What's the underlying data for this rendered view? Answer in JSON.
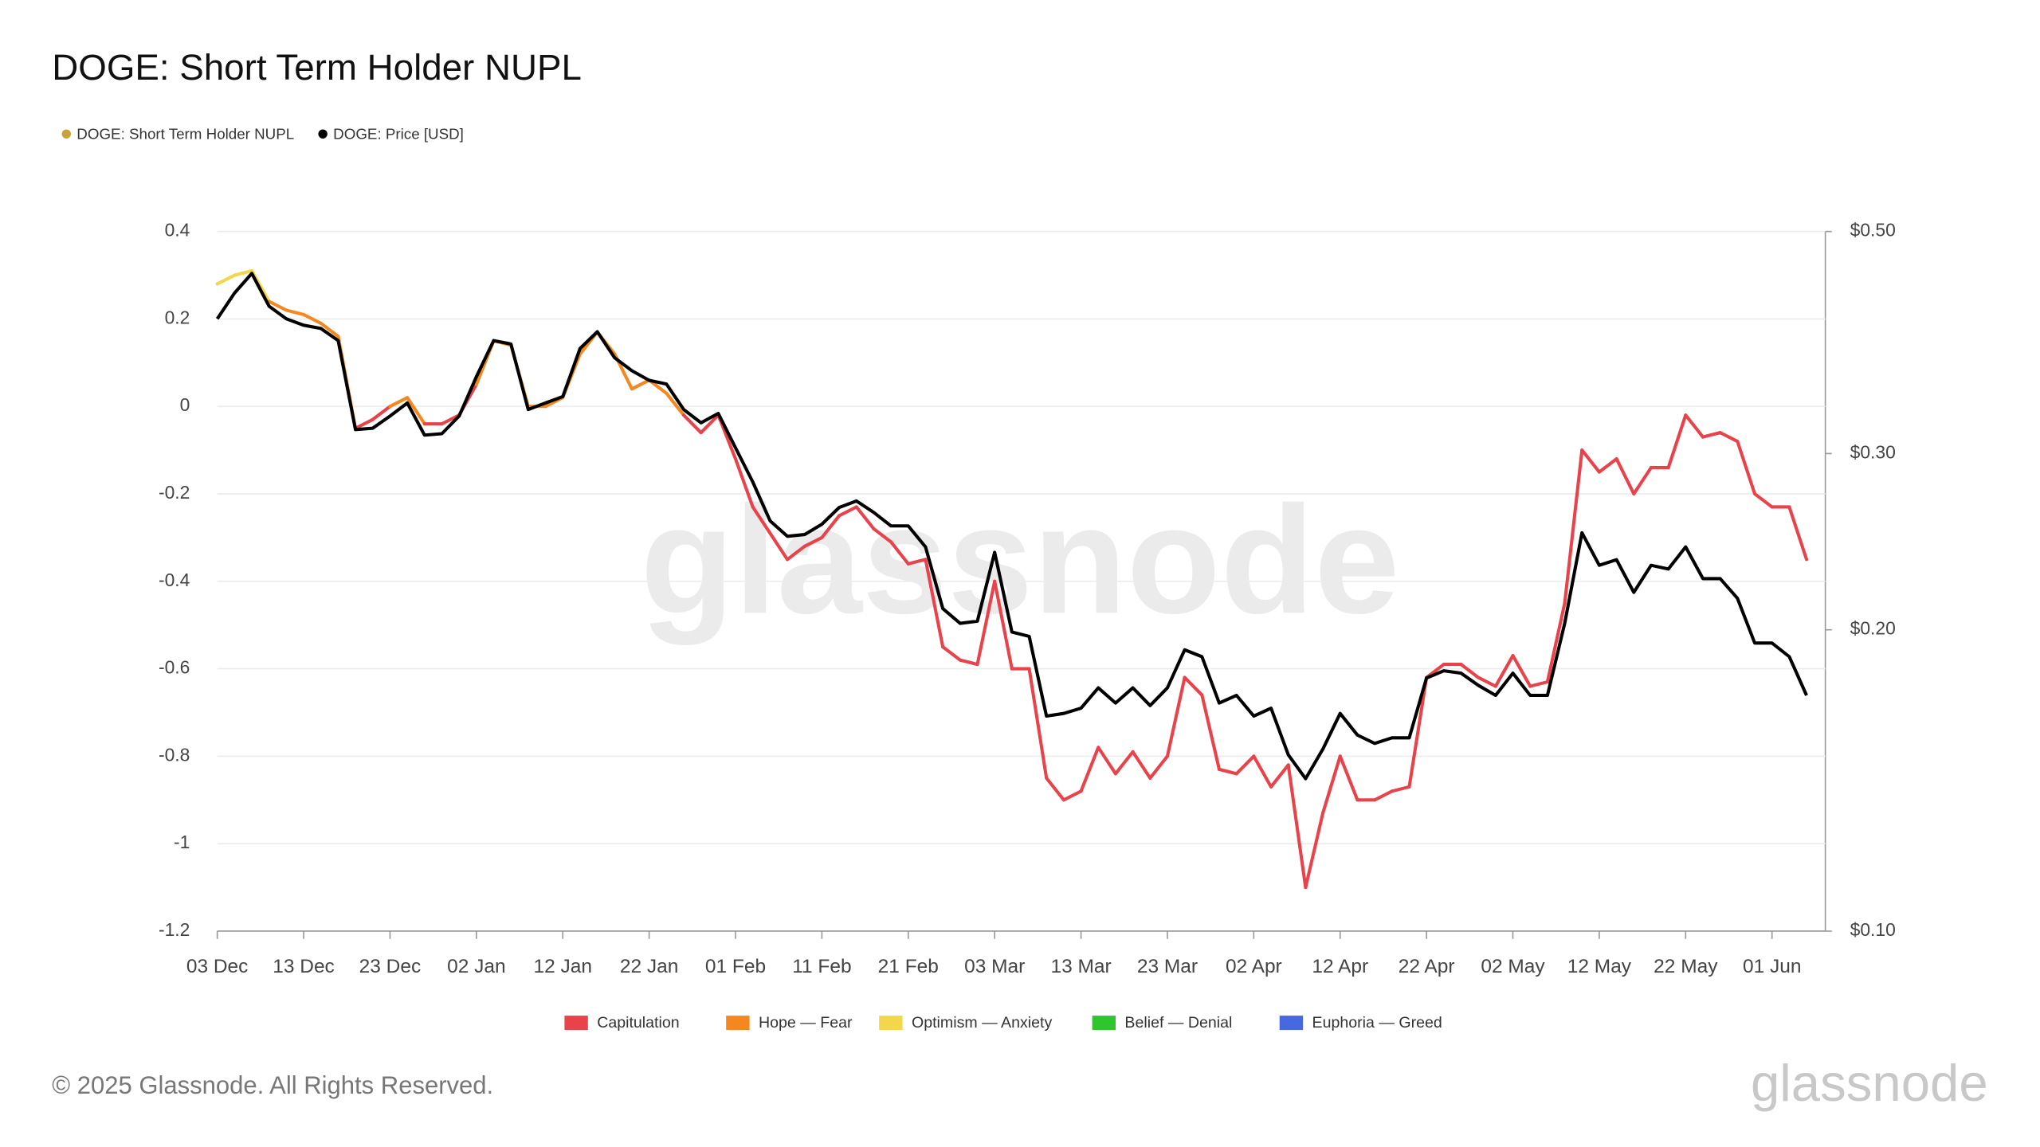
{
  "chart_data": {
    "type": "line",
    "title": "DOGE: Short Term Holder NUPL",
    "watermark": "glassnode",
    "footer": "© 2025 Glassnode. All Rights Reserved.",
    "logo": "glassnode",
    "categories": [
      "03 Dec",
      null,
      null,
      null,
      null,
      "13 Dec",
      null,
      null,
      null,
      null,
      "23 Dec",
      null,
      null,
      null,
      null,
      "02 Jan",
      null,
      null,
      null,
      null,
      "12 Jan",
      null,
      null,
      null,
      null,
      "22 Jan",
      null,
      null,
      null,
      null,
      "01 Feb",
      null,
      null,
      null,
      null,
      "11 Feb",
      null,
      null,
      null,
      null,
      "21 Feb",
      null,
      null,
      null,
      null,
      "03 Mar",
      null,
      null,
      null,
      null,
      "13 Mar",
      null,
      null,
      null,
      null,
      "23 Mar",
      null,
      null,
      null,
      null,
      "02 Apr",
      null,
      null,
      null,
      null,
      "12 Apr",
      null,
      null,
      null,
      null,
      "22 Apr",
      null,
      null,
      null,
      null,
      "02 May",
      null,
      null,
      null,
      null,
      "12 May",
      null,
      null,
      null,
      null,
      "22 May",
      null,
      null,
      null,
      null,
      "01 Jun",
      null,
      null
    ],
    "series": [
      {
        "name": "DOGE: Short Term Holder NUPL",
        "color": "#c8a23e",
        "axis": "y",
        "values": [
          0.28,
          0.3,
          0.31,
          0.24,
          0.22,
          0.21,
          0.19,
          0.16,
          -0.05,
          -0.03,
          0.0,
          0.02,
          -0.04,
          -0.04,
          -0.02,
          0.05,
          0.15,
          0.14,
          0.0,
          0.0,
          0.02,
          0.12,
          0.17,
          0.12,
          0.04,
          0.06,
          0.03,
          -0.02,
          -0.06,
          -0.02,
          -0.12,
          -0.23,
          -0.29,
          -0.35,
          -0.32,
          -0.3,
          -0.25,
          -0.23,
          -0.28,
          -0.31,
          -0.36,
          -0.35,
          -0.55,
          -0.58,
          -0.59,
          -0.4,
          -0.6,
          -0.6,
          -0.85,
          -0.9,
          -0.88,
          -0.78,
          -0.84,
          -0.79,
          -0.85,
          -0.8,
          -0.62,
          -0.66,
          -0.83,
          -0.84,
          -0.8,
          -0.87,
          -0.82,
          -1.1,
          -0.93,
          -0.8,
          -0.9,
          -0.9,
          -0.88,
          -0.87,
          -0.62,
          -0.59,
          -0.59,
          -0.62,
          -0.64,
          -0.57,
          -0.64,
          -0.63,
          -0.45,
          -0.1,
          -0.15,
          -0.12,
          -0.2,
          -0.14,
          -0.14,
          -0.02,
          -0.07,
          -0.06,
          -0.08,
          -0.2,
          -0.23,
          -0.23,
          -0.35
        ]
      },
      {
        "name": "DOGE: Price [USD]",
        "color": "#000000",
        "axis": "y2",
        "values": [
          0.409,
          0.434,
          0.454,
          0.421,
          0.409,
          0.403,
          0.4,
          0.389,
          0.317,
          0.318,
          0.327,
          0.337,
          0.313,
          0.314,
          0.327,
          0.358,
          0.389,
          0.386,
          0.332,
          0.337,
          0.342,
          0.382,
          0.397,
          0.374,
          0.363,
          0.355,
          0.352,
          0.332,
          0.322,
          0.329,
          0.304,
          0.281,
          0.257,
          0.248,
          0.249,
          0.255,
          0.265,
          0.269,
          0.262,
          0.254,
          0.254,
          0.242,
          0.21,
          0.203,
          0.204,
          0.239,
          0.199,
          0.197,
          0.164,
          0.165,
          0.167,
          0.175,
          0.169,
          0.175,
          0.168,
          0.175,
          0.191,
          0.188,
          0.169,
          0.172,
          0.164,
          0.167,
          0.15,
          0.142,
          0.152,
          0.165,
          0.157,
          0.154,
          0.156,
          0.156,
          0.179,
          0.182,
          0.181,
          0.176,
          0.172,
          0.181,
          0.172,
          0.172,
          0.203,
          0.25,
          0.232,
          0.235,
          0.218,
          0.232,
          0.23,
          0.242,
          0.225,
          0.225,
          0.215,
          0.194,
          0.194,
          0.188,
          0.172
        ]
      }
    ],
    "zones": [
      {
        "name": "Capitulation",
        "color": "#e8434a"
      },
      {
        "name": "Hope — Fear",
        "color": "#f5871f"
      },
      {
        "name": "Optimism — Anxiety",
        "color": "#f4d64a"
      },
      {
        "name": "Belief — Denial",
        "color": "#2fc52f"
      },
      {
        "name": "Euphoria — Greed",
        "color": "#4668e0"
      }
    ],
    "zone_bounds": [
      0,
      0.25,
      0.5,
      0.75
    ],
    "ylim": [
      -1.2,
      0.4
    ],
    "yticks": [
      -1.2,
      -1,
      -0.8,
      -0.6,
      -0.4,
      -0.2,
      0,
      0.2,
      0.4
    ],
    "y2lim": [
      0.1,
      0.5
    ],
    "y2_log": true,
    "y2ticks": [
      {
        "value": 0.1,
        "label": "$0.10"
      },
      {
        "value": 0.2,
        "label": "$0.20"
      },
      {
        "value": 0.3,
        "label": "$0.30"
      },
      {
        "value": 0.5,
        "label": "$0.50"
      }
    ],
    "grid": true
  }
}
